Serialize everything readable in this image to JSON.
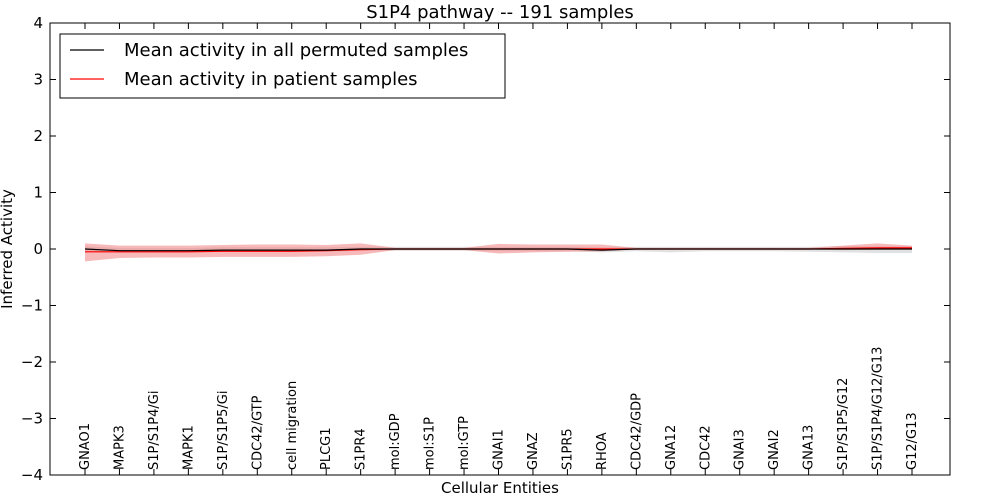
{
  "chart_data": {
    "type": "line",
    "title": "S1P4 pathway -- 191 samples",
    "xlabel": "Cellular Entities",
    "ylabel": "Inferred Activity",
    "ylim": [
      -4,
      4
    ],
    "yticks": [
      4,
      3,
      2,
      1,
      0,
      -1,
      -2,
      -3,
      -4
    ],
    "ytick_labels": [
      "4",
      "3",
      "2",
      "1",
      "0",
      "−1",
      "−2",
      "−3",
      "−4"
    ],
    "grid": false,
    "legend_position": "top-left",
    "categories": [
      "GNAO1",
      "MAPK3",
      "S1P/S1P4/Gi",
      "MAPK1",
      "S1P/S1P5/Gi",
      "CDC42/GTP",
      "cell migration",
      "PLCG1",
      "S1PR4",
      "mol:GDP",
      "mol:S1P",
      "mol:GTP",
      "GNAI1",
      "GNAZ",
      "S1PR5",
      "RHOA",
      "CDC42/GDP",
      "GNA12",
      "CDC42",
      "GNAI3",
      "GNAI2",
      "GNA13",
      "S1P/S1P5/G12",
      "S1P/S1P4/G12/G13",
      "G12/G13"
    ],
    "series": [
      {
        "name": "Mean activity in all permuted samples",
        "color": "#000000",
        "band_color": "#aaaaaa",
        "values": [
          0.0,
          -0.03,
          -0.03,
          -0.03,
          -0.02,
          -0.02,
          -0.02,
          -0.02,
          0.0,
          0.0,
          0.0,
          0.0,
          0.0,
          0.0,
          0.0,
          -0.02,
          0.0,
          0.0,
          0.0,
          0.0,
          0.0,
          0.0,
          0.0,
          0.0,
          0.0
        ],
        "band_lower": [
          -0.05,
          -0.06,
          -0.06,
          -0.06,
          -0.05,
          -0.05,
          -0.05,
          -0.05,
          -0.03,
          -0.03,
          -0.03,
          -0.03,
          -0.04,
          -0.04,
          -0.04,
          -0.06,
          -0.04,
          -0.06,
          -0.04,
          -0.04,
          -0.04,
          -0.05,
          -0.06,
          -0.07,
          -0.07
        ],
        "band_upper": [
          0.05,
          0.02,
          0.02,
          0.02,
          0.03,
          0.03,
          0.03,
          0.03,
          0.04,
          0.04,
          0.04,
          0.04,
          0.04,
          0.04,
          0.04,
          0.03,
          0.04,
          0.04,
          0.04,
          0.04,
          0.04,
          0.04,
          0.05,
          0.05,
          0.05
        ]
      },
      {
        "name": "Mean activity in patient samples",
        "color": "#ff0000",
        "band_color": "#f08080",
        "values": [
          -0.05,
          -0.05,
          -0.05,
          -0.05,
          -0.04,
          -0.04,
          -0.04,
          -0.03,
          -0.01,
          0.0,
          0.0,
          0.0,
          0.0,
          0.0,
          0.0,
          0.0,
          0.0,
          0.0,
          0.0,
          0.0,
          0.0,
          0.0,
          0.01,
          0.02,
          0.02
        ],
        "band_lower": [
          -0.22,
          -0.16,
          -0.15,
          -0.15,
          -0.14,
          -0.14,
          -0.14,
          -0.13,
          -0.1,
          -0.02,
          -0.02,
          -0.02,
          -0.08,
          -0.06,
          -0.05,
          -0.04,
          -0.01,
          -0.01,
          -0.01,
          -0.01,
          -0.01,
          -0.01,
          -0.02,
          -0.01,
          -0.01
        ],
        "band_upper": [
          0.1,
          0.06,
          0.06,
          0.06,
          0.07,
          0.08,
          0.08,
          0.07,
          0.1,
          0.02,
          0.02,
          0.02,
          0.09,
          0.08,
          0.08,
          0.08,
          0.02,
          0.02,
          0.02,
          0.02,
          0.02,
          0.02,
          0.06,
          0.1,
          0.06
        ]
      }
    ]
  }
}
